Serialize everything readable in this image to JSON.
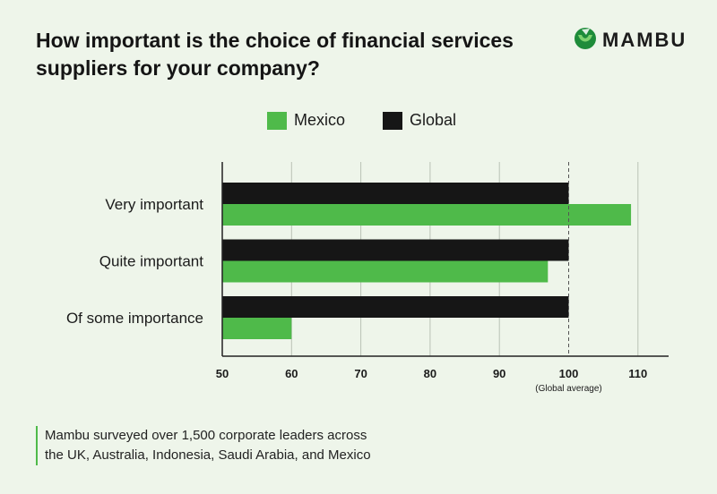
{
  "title_lines": [
    "How important is the choice of financial services",
    "suppliers for your company?"
  ],
  "brand": {
    "name": "MAMBU",
    "icon": "mambu-logo-icon",
    "color": "#4fba4a"
  },
  "footnote_lines": [
    "Mambu surveyed over 1,500 corporate leaders across",
    "the UK, Australia, Indonesia, Saudi Arabia, and Mexico"
  ],
  "colors": {
    "mexico": "#4fba4a",
    "global": "#161616",
    "background": "#eef5ea"
  },
  "chart_data": {
    "type": "bar",
    "orientation": "horizontal",
    "title": "How important is the choice of financial services suppliers for your company?",
    "categories": [
      "Very important",
      "Quite important",
      "Of some importance"
    ],
    "series": [
      {
        "name": "Global",
        "values": [
          100,
          100,
          100
        ]
      },
      {
        "name": "Mexico",
        "values": [
          109,
          97,
          60
        ]
      }
    ],
    "xlim": [
      50,
      115
    ],
    "xticks": [
      50,
      60,
      70,
      80,
      90,
      100,
      110
    ],
    "reference_line": {
      "value": 100,
      "label": "(Global average)",
      "style": "dashed"
    },
    "legend": {
      "position": "top-center",
      "entries": [
        "Mexico",
        "Global"
      ]
    },
    "grid": true
  }
}
